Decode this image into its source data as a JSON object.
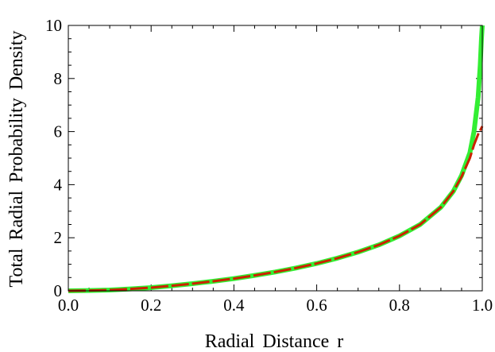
{
  "chart_data": {
    "type": "line",
    "title": "",
    "xlabel": "Radial  Distance  r",
    "ylabel": "Total  Radial  Probability  Density",
    "xlim": [
      0,
      1
    ],
    "ylim": [
      0,
      10
    ],
    "x_ticks": [
      "0.0",
      "0.2",
      "0.4",
      "0.6",
      "0.8",
      "1.0"
    ],
    "y_ticks": [
      "0",
      "2",
      "4",
      "6",
      "8",
      "10"
    ],
    "grid": false,
    "legend": "none",
    "series": [
      {
        "color": "#33ee33",
        "style": "solid",
        "x": [
          0.0,
          0.05,
          0.1,
          0.15,
          0.2,
          0.25,
          0.3,
          0.35,
          0.4,
          0.45,
          0.5,
          0.55,
          0.6,
          0.65,
          0.7,
          0.75,
          0.8,
          0.85,
          0.9,
          0.93,
          0.95,
          0.97,
          0.98,
          0.99,
          0.995,
          0.998,
          1.0
        ],
        "y": [
          0.0,
          0.01,
          0.03,
          0.07,
          0.12,
          0.19,
          0.27,
          0.36,
          0.46,
          0.58,
          0.71,
          0.86,
          1.03,
          1.23,
          1.46,
          1.73,
          2.07,
          2.5,
          3.15,
          3.75,
          4.35,
          5.2,
          6.0,
          7.3,
          8.5,
          9.5,
          10.0
        ]
      },
      {
        "color": "#cc2200",
        "style": "dashed",
        "x": [
          0.0,
          0.05,
          0.1,
          0.15,
          0.2,
          0.25,
          0.3,
          0.35,
          0.4,
          0.45,
          0.5,
          0.55,
          0.6,
          0.65,
          0.7,
          0.75,
          0.8,
          0.85,
          0.9,
          0.93,
          0.95,
          0.97,
          0.98,
          0.99,
          1.0
        ],
        "y": [
          0.0,
          0.01,
          0.03,
          0.07,
          0.12,
          0.19,
          0.27,
          0.36,
          0.46,
          0.58,
          0.71,
          0.86,
          1.03,
          1.23,
          1.46,
          1.73,
          2.07,
          2.5,
          3.15,
          3.75,
          4.3,
          5.0,
          5.5,
          5.9,
          6.2
        ]
      }
    ]
  }
}
